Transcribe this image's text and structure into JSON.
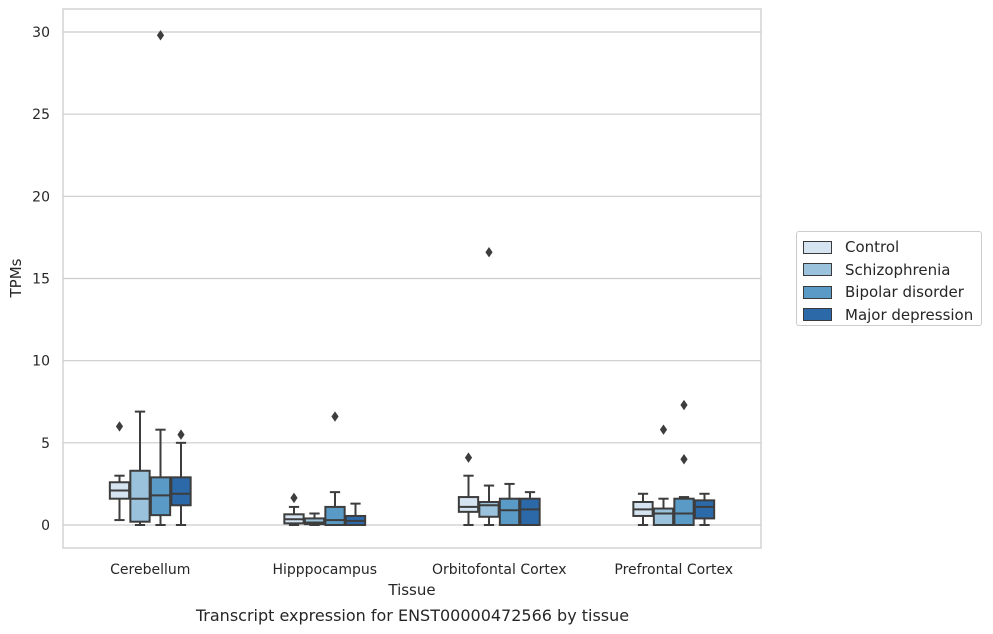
{
  "caption": "Transcript expression for ENST00000472566 by tissue",
  "chart_data": {
    "type": "box",
    "xlabel": "Tissue",
    "ylabel": "TPMs",
    "ylim": [
      -1.4,
      31.4
    ],
    "yticks": [
      0,
      5,
      10,
      15,
      20,
      25,
      30
    ],
    "grid": true,
    "legend_position": "right",
    "categories": [
      "Cerebellum",
      "Hipppocampus",
      "Orbitofontal Cortex",
      "Prefrontal Cortex"
    ],
    "series": [
      {
        "name": "Control",
        "color": "#d5e4f0",
        "boxes": [
          {
            "whislo": 0.3,
            "q1": 1.6,
            "med": 2.1,
            "q3": 2.6,
            "whishi": 3.0,
            "fliers": [
              6.0
            ]
          },
          {
            "whislo": 0.0,
            "q1": 0.1,
            "med": 0.35,
            "q3": 0.65,
            "whishi": 1.1,
            "fliers": [
              1.65
            ]
          },
          {
            "whislo": 0.0,
            "q1": 0.8,
            "med": 1.1,
            "q3": 1.7,
            "whishi": 3.0,
            "fliers": [
              4.1
            ]
          },
          {
            "whislo": 0.0,
            "q1": 0.55,
            "med": 0.95,
            "q3": 1.4,
            "whishi": 1.9,
            "fliers": []
          }
        ]
      },
      {
        "name": "Schizophrenia",
        "color": "#9ac2dc",
        "boxes": [
          {
            "whislo": 0.0,
            "q1": 0.2,
            "med": 1.6,
            "q3": 3.3,
            "whishi": 6.9,
            "fliers": []
          },
          {
            "whislo": 0.0,
            "q1": 0.05,
            "med": 0.15,
            "q3": 0.4,
            "whishi": 0.7,
            "fliers": []
          },
          {
            "whislo": 0.0,
            "q1": 0.5,
            "med": 1.2,
            "q3": 1.4,
            "whishi": 2.4,
            "fliers": [
              16.6
            ]
          },
          {
            "whislo": 0.0,
            "q1": 0.0,
            "med": 0.7,
            "q3": 1.0,
            "whishi": 1.6,
            "fliers": [
              5.8
            ]
          }
        ]
      },
      {
        "name": "Bipolar disorder",
        "color": "#5a9ac6",
        "boxes": [
          {
            "whislo": 0.0,
            "q1": 0.6,
            "med": 1.8,
            "q3": 2.9,
            "whishi": 5.8,
            "fliers": [
              29.8
            ]
          },
          {
            "whislo": 0.0,
            "q1": 0.0,
            "med": 0.3,
            "q3": 1.1,
            "whishi": 2.0,
            "fliers": [
              6.6
            ]
          },
          {
            "whislo": 0.0,
            "q1": 0.0,
            "med": 0.9,
            "q3": 1.6,
            "whishi": 2.5,
            "fliers": []
          },
          {
            "whislo": 0.0,
            "q1": 0.0,
            "med": 0.7,
            "q3": 1.6,
            "whishi": 1.7,
            "fliers": [
              7.3,
              4.0
            ]
          }
        ]
      },
      {
        "name": "Major depression",
        "color": "#2c69a9",
        "boxes": [
          {
            "whislo": 0.0,
            "q1": 1.2,
            "med": 1.9,
            "q3": 2.9,
            "whishi": 5.0,
            "fliers": [
              5.5
            ]
          },
          {
            "whislo": 0.0,
            "q1": 0.0,
            "med": 0.25,
            "q3": 0.55,
            "whishi": 1.3,
            "fliers": []
          },
          {
            "whislo": 0.0,
            "q1": 0.0,
            "med": 0.95,
            "q3": 1.6,
            "whishi": 2.0,
            "fliers": []
          },
          {
            "whislo": 0.0,
            "q1": 0.4,
            "med": 1.1,
            "q3": 1.5,
            "whishi": 1.9,
            "fliers": []
          }
        ]
      }
    ]
  }
}
